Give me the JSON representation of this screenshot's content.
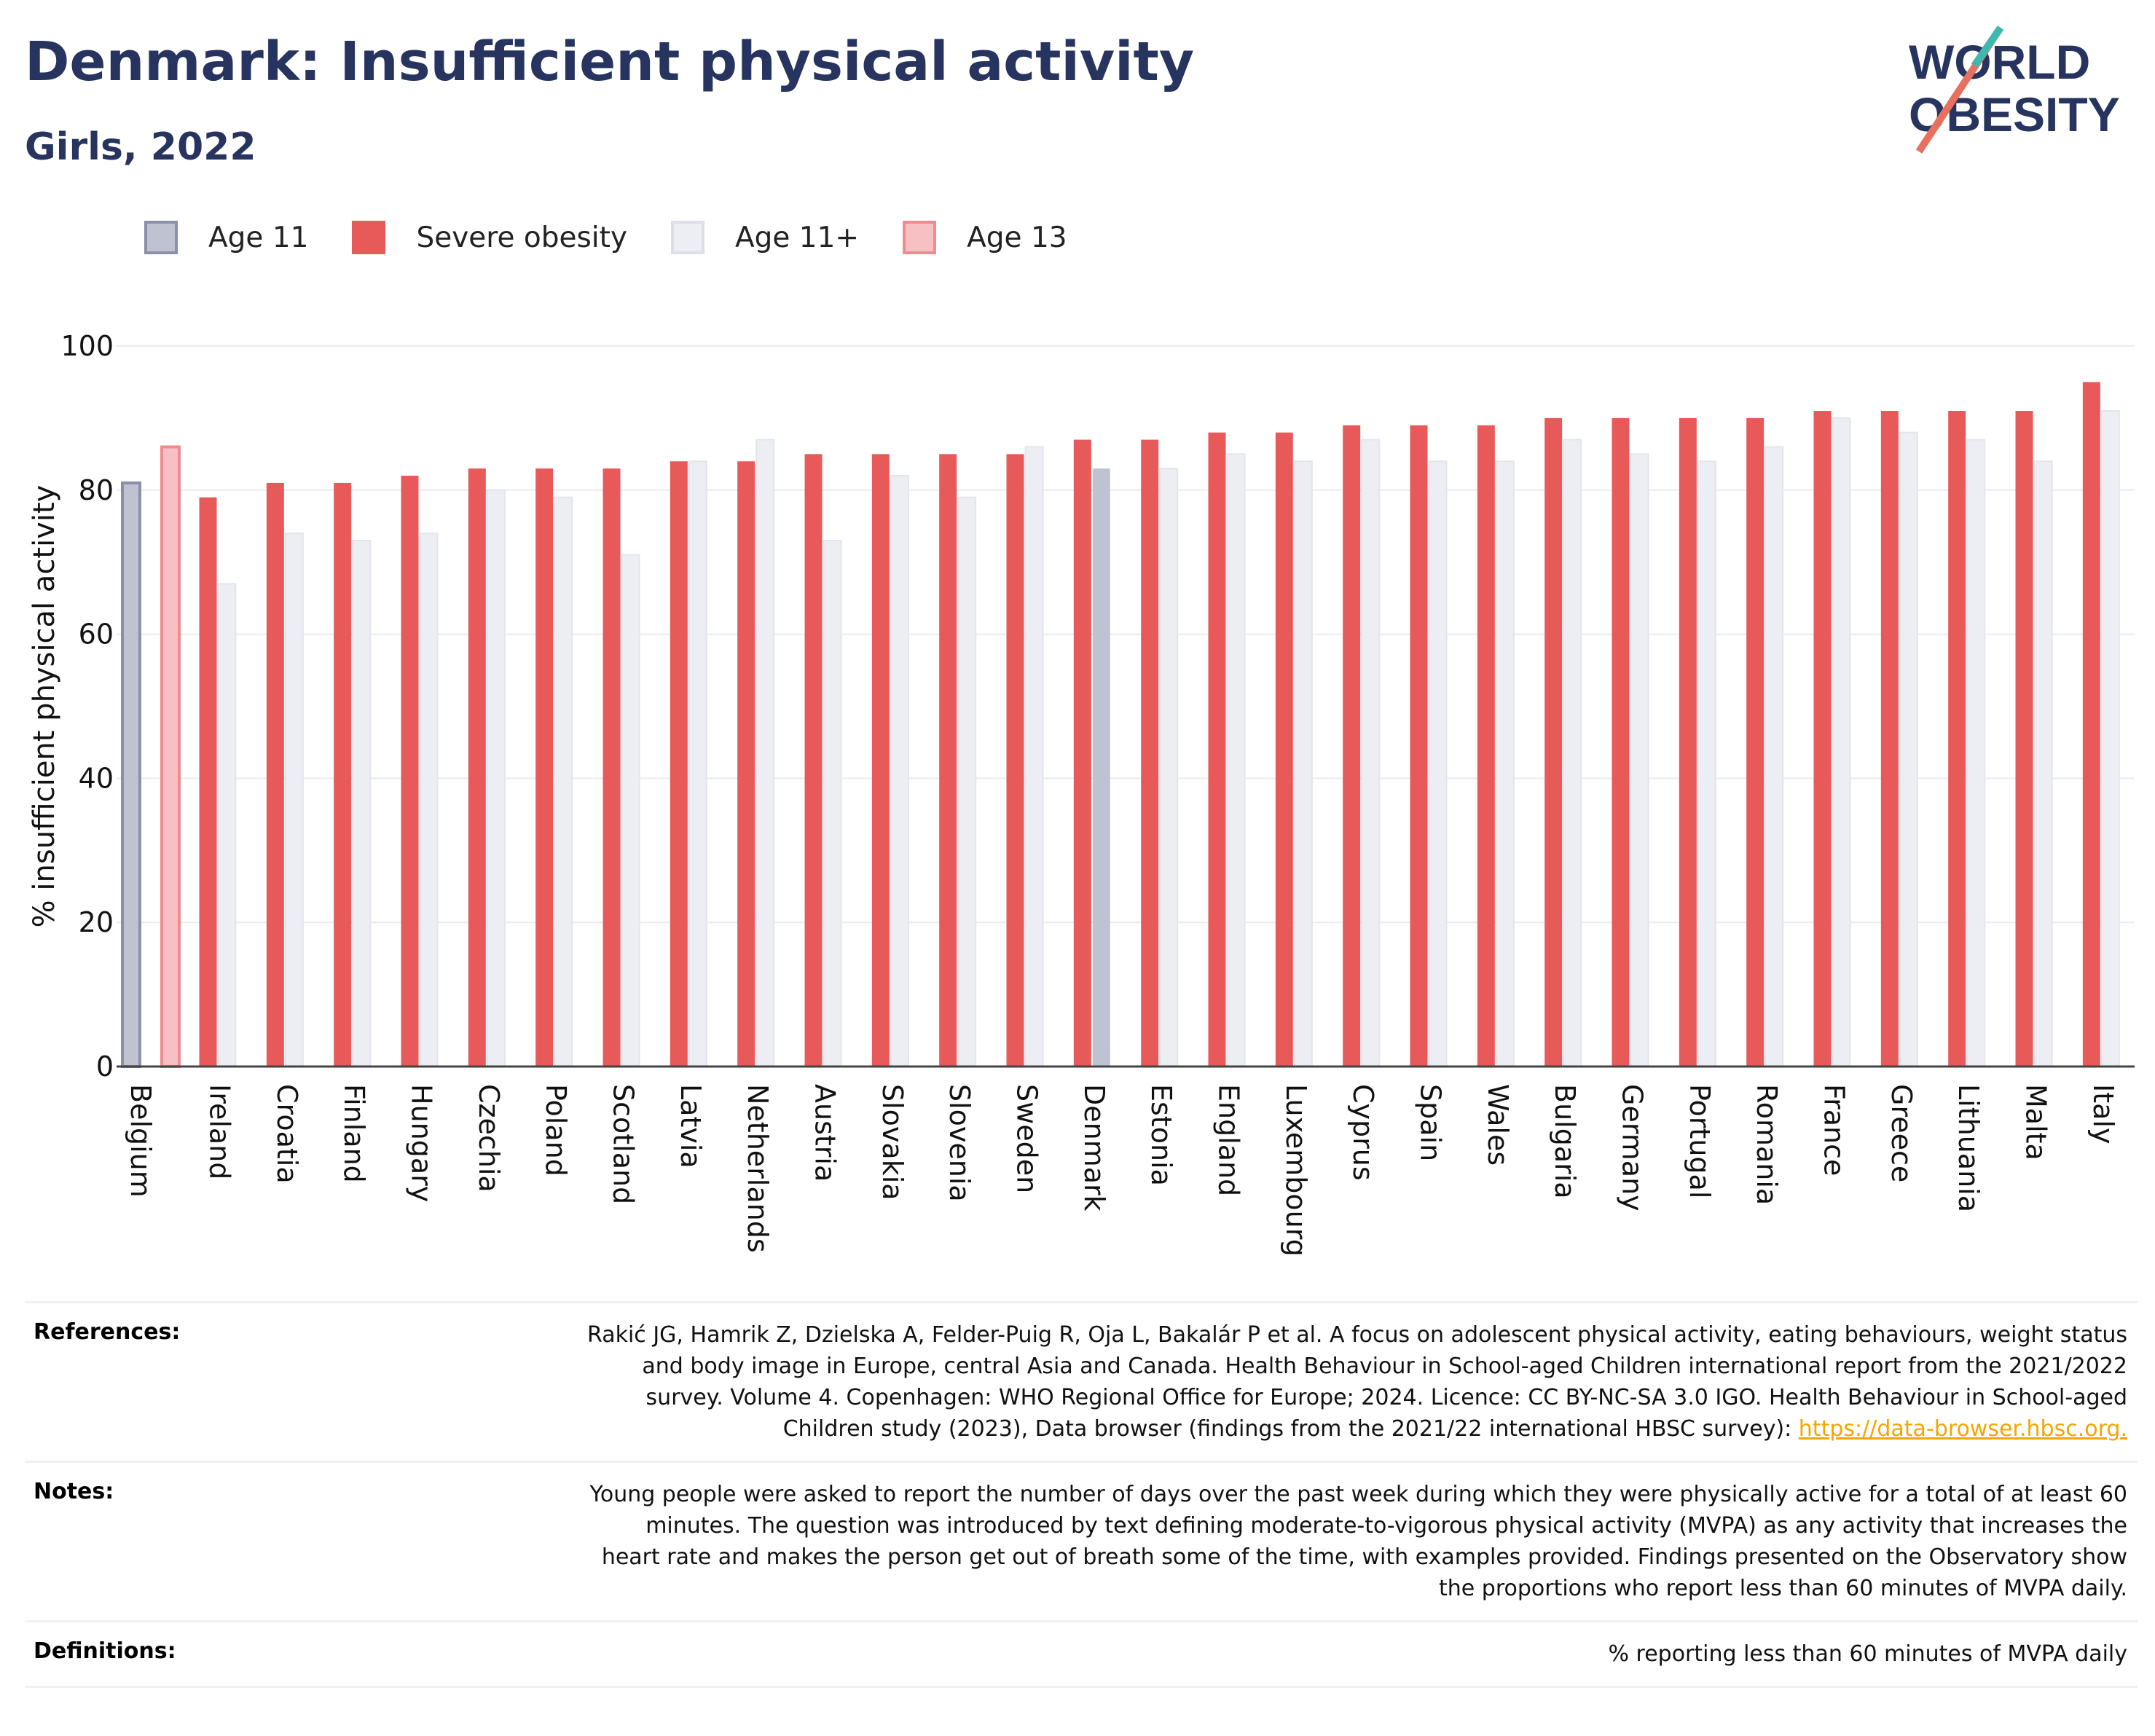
{
  "header": {
    "title": "Denmark: Insufficient physical activity",
    "subtitle": "Girls, 2022",
    "logo_line1": "WORLD",
    "logo_line2": "OBESITY"
  },
  "legend": [
    {
      "label": "Age 11",
      "color": "#bfc3d1",
      "border": "#8a90a8"
    },
    {
      "label": "Severe obesity",
      "color": "#e85a5a",
      "border": "#e85a5a"
    },
    {
      "label": "Age 11+",
      "color": "#eceef3",
      "border": "#dcdfe8"
    },
    {
      "label": "Age 13",
      "color": "#f7c0c2",
      "border": "#f08b8f"
    }
  ],
  "chart_data": {
    "type": "bar",
    "ylabel": "% insufficient physical activity",
    "ylim": [
      0,
      100
    ],
    "yticks": [
      0,
      20,
      40,
      60,
      80,
      100
    ],
    "categories": [
      "Belgium",
      "Ireland",
      "Croatia",
      "Finland",
      "Hungary",
      "Czechia",
      "Poland",
      "Scotland",
      "Latvia",
      "Netherlands",
      "Austria",
      "Slovakia",
      "Slovenia",
      "Sweden",
      "Denmark",
      "Estonia",
      "England",
      "Luxembourg",
      "Cyprus",
      "Spain",
      "Wales",
      "Bulgaria",
      "Germany",
      "Portugal",
      "Romania",
      "France",
      "Greece",
      "Lithuania",
      "Malta",
      "Italy"
    ],
    "series": [
      {
        "name": "Age 11",
        "color": "#bfc3d1",
        "values": [
          81,
          null,
          null,
          null,
          null,
          null,
          null,
          null,
          null,
          null,
          null,
          null,
          null,
          null,
          null,
          null,
          null,
          null,
          null,
          null,
          null,
          null,
          null,
          null,
          null,
          null,
          null,
          null,
          null,
          null
        ]
      },
      {
        "name": "Age 13",
        "color": "#f7c0c2",
        "values": [
          86,
          null,
          null,
          null,
          null,
          null,
          null,
          null,
          null,
          null,
          null,
          null,
          null,
          null,
          null,
          null,
          null,
          null,
          null,
          null,
          null,
          null,
          null,
          null,
          null,
          null,
          null,
          null,
          null,
          null
        ]
      },
      {
        "name": "Severe obesity",
        "color": "#e85a5a",
        "values": [
          null,
          79,
          81,
          81,
          82,
          83,
          83,
          83,
          84,
          84,
          85,
          85,
          85,
          85,
          87,
          87,
          88,
          88,
          89,
          89,
          89,
          90,
          90,
          90,
          90,
          91,
          91,
          91,
          91,
          95
        ]
      },
      {
        "name": "Age 11+",
        "color": "#eceef3",
        "values": [
          null,
          67,
          74,
          73,
          74,
          80,
          79,
          71,
          84,
          87,
          73,
          82,
          79,
          86,
          83,
          83,
          85,
          84,
          87,
          84,
          84,
          87,
          85,
          84,
          86,
          90,
          88,
          87,
          84,
          91
        ]
      }
    ],
    "highlight": {
      "category": "Denmark",
      "age11plus_color": "#bfc3d1"
    },
    "grid": true
  },
  "meta": {
    "references_label": "References:",
    "references_text": "Rakić JG, Hamrik Z, Dzielska A, Felder-Puig R, Oja L, Bakalár P et al. A focus on adolescent physical activity, eating behaviours, weight status and body image in Europe, central Asia and Canada. Health Behaviour in School-aged Children international report from the 2021/2022 survey. Volume 4. Copenhagen: WHO Regional Office for Europe; 2024. Licence: CC BY-NC-SA 3.0 IGO. Health Behaviour in School-aged Children study (2023), Data browser (findings from the 2021/22 international HBSC survey): ",
    "references_link": "https://data-browser.hbsc.org.",
    "notes_label": "Notes:",
    "notes_text": "Young people were asked to report the number of days over the past week during which they were physically active for a total of at least 60 minutes. The question was introduced by text defining moderate-to-vigorous physical activity (MVPA) as any activity that increases the heart rate and makes the person get out of breath some of the time, with examples provided. Findings presented on the Observatory show the proportions who report less than 60 minutes of MVPA daily.",
    "definitions_label": "Definitions:",
    "definitions_text": "% reporting less than 60 minutes of MVPA daily"
  }
}
